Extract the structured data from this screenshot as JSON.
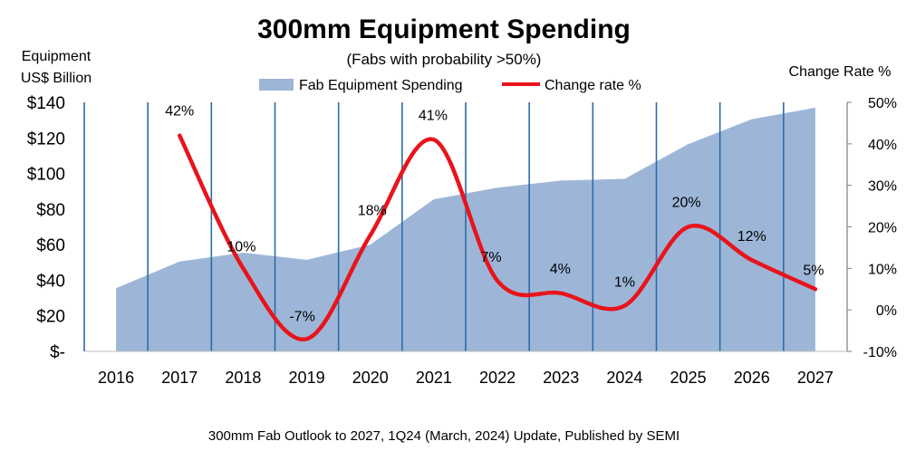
{
  "chart_data": {
    "type": "area+line",
    "title": "300mm Equipment Spending",
    "subtitle": "(Fabs with probability >50%)",
    "left_axis_title": [
      "Equipment",
      "US$ Billion"
    ],
    "right_axis_title": "Change Rate %",
    "footer": "300mm Fab Outlook to 2027, 1Q24 (March, 2024) Update, Published by SEMI",
    "categories": [
      "2016",
      "2017",
      "2018",
      "2019",
      "2020",
      "2021",
      "2022",
      "2023",
      "2024",
      "2025",
      "2026",
      "2027"
    ],
    "left_ylim": [
      0,
      140
    ],
    "left_ticks": [
      "$-",
      "$20",
      "$40",
      "$60",
      "$80",
      "$100",
      "$120",
      "$140"
    ],
    "right_ylim": [
      -10,
      50
    ],
    "right_ticks": [
      "-10%",
      "0%",
      "10%",
      "20%",
      "30%",
      "40%",
      "50%"
    ],
    "series": [
      {
        "name": "Fab Equipment Spending",
        "type": "area",
        "axis": "left",
        "color": "#9db6d8",
        "values": [
          35.5,
          50.5,
          55.5,
          51.5,
          60,
          85.5,
          92,
          96,
          97,
          116.5,
          130.5,
          137
        ]
      },
      {
        "name": "Change rate %",
        "type": "line",
        "axis": "right",
        "color": "#e8141b",
        "values": [
          null,
          42,
          10,
          -7,
          18,
          41,
          7,
          4,
          1,
          20,
          12,
          5
        ],
        "labels": [
          "",
          "42%",
          "10%",
          "-7%",
          "18%",
          "41%",
          "7%",
          "4%",
          "1%",
          "20%",
          "12%",
          "5%"
        ]
      }
    ],
    "gridlines": "vertical",
    "legend_position": "top-center"
  }
}
